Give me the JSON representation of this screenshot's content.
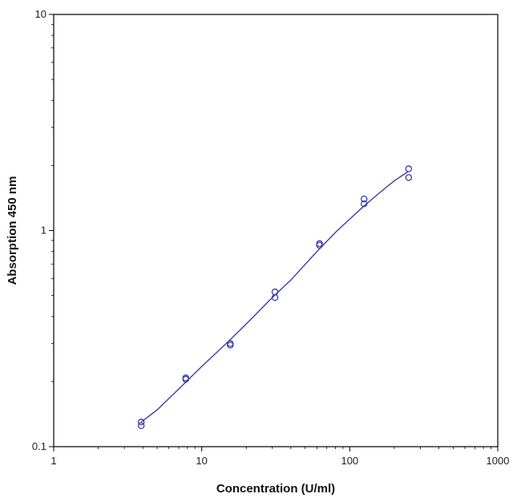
{
  "chart_data": {
    "type": "scatter",
    "title": "",
    "xlabel": "Concentration (U/ml)",
    "ylabel": "Absorption 450 nm",
    "xscale": "log",
    "yscale": "log",
    "xlim": [
      1,
      1000
    ],
    "ylim": [
      0.1,
      10
    ],
    "x_ticks": [
      1,
      10,
      100,
      1000
    ],
    "x_tick_labels": [
      "1",
      "10",
      "100",
      "1000"
    ],
    "y_ticks": [
      0.1,
      1,
      10
    ],
    "y_tick_labels": [
      "0.1",
      "1",
      "10"
    ],
    "grid": false,
    "legend": "none",
    "series": [
      {
        "kind": "points",
        "marker": "circle-open",
        "x": [
          3.9,
          3.9,
          7.8,
          7.8,
          15.6,
          15.6,
          31.25,
          31.25,
          62.5,
          62.5,
          125,
          125,
          250,
          250
        ],
        "y": [
          0.125,
          0.13,
          0.205,
          0.208,
          0.295,
          0.3,
          0.49,
          0.52,
          0.855,
          0.87,
          1.33,
          1.4,
          1.76,
          1.93
        ]
      },
      {
        "kind": "fit-curve",
        "x": [
          3.9,
          5,
          7,
          10,
          15,
          20,
          30,
          40,
          60,
          80,
          100,
          125,
          160,
          200,
          250
        ],
        "y": [
          0.13,
          0.148,
          0.185,
          0.235,
          0.305,
          0.37,
          0.49,
          0.59,
          0.8,
          0.98,
          1.13,
          1.3,
          1.5,
          1.7,
          1.88
        ]
      }
    ],
    "colors": {
      "marks": "#3d3da8",
      "axis": "#000000"
    }
  }
}
